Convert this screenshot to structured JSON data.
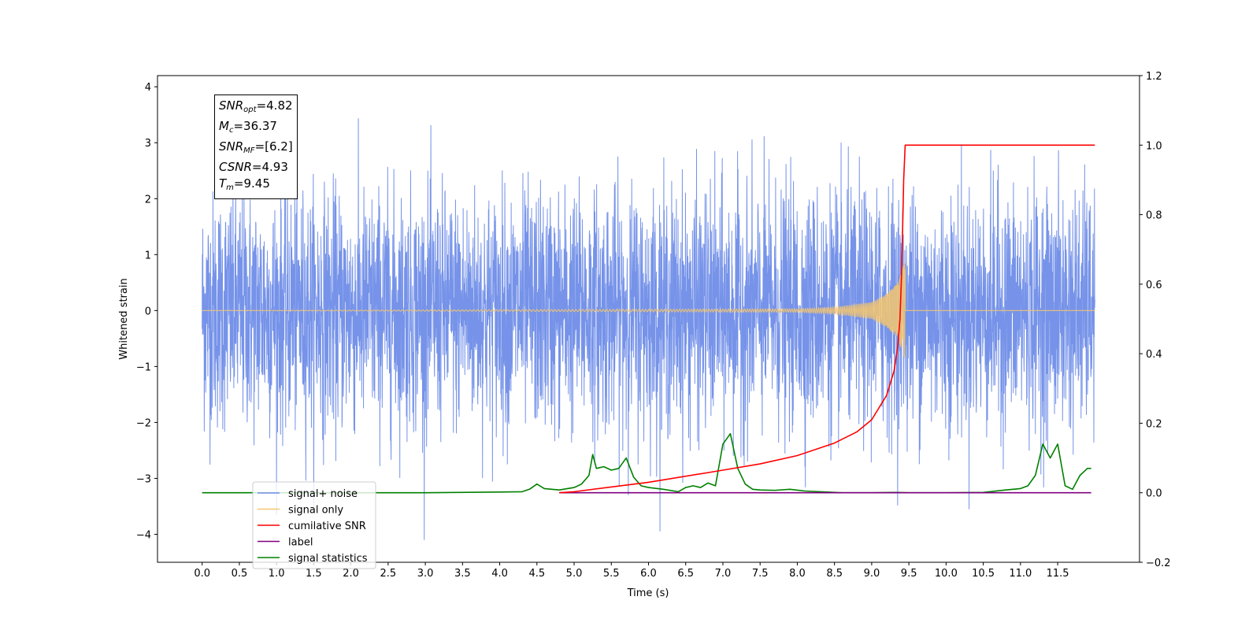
{
  "chart_data": {
    "type": "line",
    "title": "",
    "xlabel": "Time (s)",
    "ylabel": "Whitened strain",
    "xlim": [
      -0.6,
      12.6
    ],
    "ylim": [
      -4.5,
      4.2
    ],
    "y2lim": [
      -0.2,
      1.2
    ],
    "x_ticks": [
      "0.0",
      "0.5",
      "1.0",
      "1.5",
      "2.0",
      "2.5",
      "3.0",
      "3.5",
      "4.0",
      "4.5",
      "5.0",
      "5.5",
      "6.0",
      "6.5",
      "7.0",
      "7.5",
      "8.0",
      "8.5",
      "9.0",
      "9.5",
      "10.0",
      "10.5",
      "11.0",
      "11.5"
    ],
    "y_ticks": [
      "4",
      "3",
      "2",
      "1",
      "0",
      "−1",
      "−2",
      "−3",
      "−4"
    ],
    "y2_ticks": [
      "1.2",
      "1.0",
      "0.8",
      "0.6",
      "0.4",
      "0.2",
      "0.0",
      "−0.2"
    ],
    "grid": false,
    "legend_position": "lower-left",
    "legend": [
      {
        "label": "signal+ noise",
        "color": "#6f8de8"
      },
      {
        "label": "signal only",
        "color": "#f5c66e"
      },
      {
        "label": "cumilative SNR",
        "color": "#ff0000"
      },
      {
        "label": "label",
        "color": "#800080"
      },
      {
        "label": "signal statistics",
        "color": "#008000"
      }
    ],
    "annotation": {
      "snr_opt": "4.82",
      "mc": "36.37",
      "snr_mf": "[6.2]",
      "csnr": "4.93",
      "tm": "9.45"
    },
    "series": [
      {
        "name": "signal+ noise",
        "axis": "left",
        "color": "#6f8de8",
        "description_x_range": [
          0.0,
          12.0
        ],
        "envelope_max": 3.8,
        "envelope_min": -4.1
      },
      {
        "name": "signal only",
        "axis": "left",
        "color": "#f5c66e",
        "x": [
          0.0,
          8.0,
          8.5,
          9.0,
          9.2,
          9.35,
          9.45,
          9.46,
          12.0
        ],
        "amplitude": [
          0.0,
          0.03,
          0.06,
          0.15,
          0.3,
          0.5,
          0.9,
          0.0,
          0.0
        ]
      },
      {
        "name": "cumilative SNR",
        "axis": "right",
        "color": "#ff0000",
        "x": [
          4.8,
          5.0,
          6.0,
          7.0,
          7.5,
          8.0,
          8.5,
          8.8,
          9.0,
          9.2,
          9.3,
          9.35,
          9.38,
          9.4,
          9.42,
          9.43,
          9.45,
          12.0
        ],
        "y": [
          0.0,
          0.003,
          0.03,
          0.065,
          0.083,
          0.107,
          0.143,
          0.175,
          0.21,
          0.28,
          0.35,
          0.42,
          0.5,
          0.62,
          0.8,
          0.9,
          1.0,
          1.0
        ]
      },
      {
        "name": "label",
        "axis": "right",
        "color": "#800080",
        "x": [
          4.8,
          11.95
        ],
        "y": [
          0.0,
          0.0
        ]
      },
      {
        "name": "signal statistics",
        "axis": "right",
        "color": "#008000",
        "x": [
          0.0,
          1.0,
          2.0,
          3.0,
          4.0,
          4.3,
          4.4,
          4.5,
          4.6,
          4.8,
          5.0,
          5.1,
          5.2,
          5.25,
          5.3,
          5.4,
          5.5,
          5.6,
          5.7,
          5.8,
          5.9,
          6.0,
          6.2,
          6.4,
          6.5,
          6.6,
          6.7,
          6.8,
          6.9,
          7.0,
          7.1,
          7.15,
          7.2,
          7.3,
          7.4,
          7.5,
          7.7,
          7.9,
          8.1,
          8.4,
          8.6,
          8.8,
          9.0,
          9.3,
          9.5,
          10.0,
          10.5,
          10.8,
          10.9,
          11.0,
          11.1,
          11.2,
          11.3,
          11.4,
          11.5,
          11.55,
          11.6,
          11.7,
          11.8,
          11.9,
          11.95
        ],
        "y": [
          0.0,
          0.0,
          0.0,
          0.0,
          0.002,
          0.003,
          0.01,
          0.025,
          0.012,
          0.008,
          0.015,
          0.025,
          0.05,
          0.11,
          0.07,
          0.075,
          0.065,
          0.07,
          0.1,
          0.045,
          0.02,
          0.015,
          0.01,
          0.003,
          0.015,
          0.02,
          0.015,
          0.028,
          0.02,
          0.14,
          0.17,
          0.12,
          0.07,
          0.025,
          0.01,
          0.008,
          0.007,
          0.01,
          0.005,
          0.002,
          0.0,
          0.0,
          0.0,
          0.001,
          0.0,
          0.0,
          0.001,
          0.008,
          0.01,
          0.012,
          0.02,
          0.05,
          0.14,
          0.1,
          0.14,
          0.08,
          0.02,
          0.01,
          0.05,
          0.07,
          0.07
        ]
      }
    ]
  }
}
